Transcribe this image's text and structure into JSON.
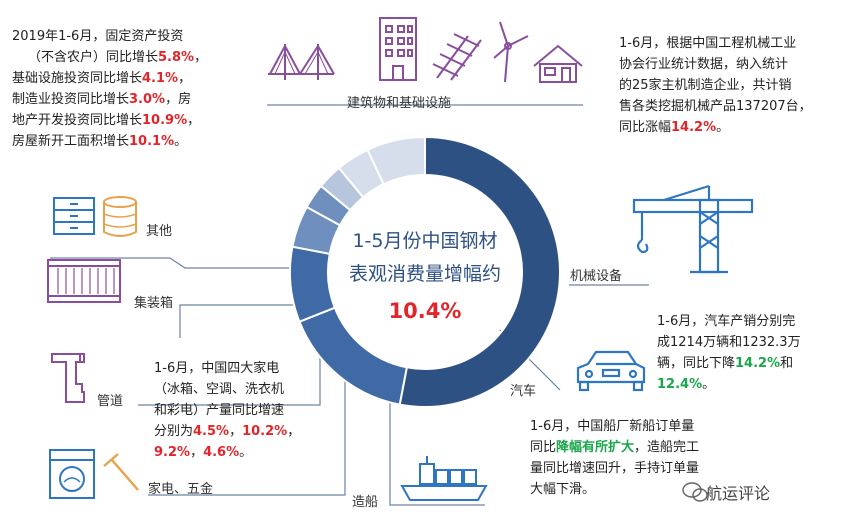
{
  "center": {
    "line1": "1-5月份中国钢材",
    "line2": "表观消费量增幅约",
    "value": "10.4%"
  },
  "colors": {
    "dark_blue": "#2e5184",
    "mid_blue": "#3f6aa6",
    "light_blue": "#6f8fbf",
    "pale_blue": "#b8c6dd",
    "palest_blue": "#d6deeb",
    "icon_purple": "#8a4f9c",
    "icon_blue": "#2f76c2",
    "icon_orange": "#e8a24a",
    "red": "#e0262b",
    "green": "#1aa64b"
  },
  "chart_data": {
    "type": "pie",
    "title": "1-5月份中国钢材表观消费量增幅约10.4%",
    "categories": [
      "建筑物和基础设施",
      "机械设备",
      "汽车",
      "造船",
      "家电、五金",
      "管道",
      "集装箱",
      "其他"
    ],
    "values": [
      53,
      16,
      9,
      5,
      3,
      3,
      4,
      7
    ],
    "note": "Segment sizes estimated from ring arc lengths (percent of total); the figure prints no values for them."
  },
  "categories": {
    "buildings": "建筑物和基础设施",
    "machinery": "机械设备",
    "auto": "汽车",
    "ship": "造船",
    "appliance": "家电、五金",
    "pipe": "管道",
    "container": "集装箱",
    "other": "其他"
  },
  "texts": {
    "topleft": {
      "l1": "2019年1-6月，固定资产投资",
      "l2a": "（不含农户）同比增长",
      "l2b": "5.8%",
      "l2c": "，",
      "l3a": "基础设施投资同比增长",
      "l3b": "4.1%",
      "l3c": "，",
      "l4a": "制造业投资同比增长",
      "l4b": "3.0%",
      "l4c": "，房",
      "l5a": "地产开发投资同比增长",
      "l5b": "10.9%",
      "l5c": "，",
      "l6a": "房屋新开工面积增长",
      "l6b": "10.1%",
      "l6c": "。"
    },
    "topright": {
      "l1": "1-6月，根据中国工程机械工业",
      "l2": "协会行业统计数据，纳入统计",
      "l3": "的25家主机制造企业，共计销",
      "l4": "售各类挖掘机械产品137207台，",
      "l5a": "同比涨幅",
      "l5b": "14.2%",
      "l5c": "。"
    },
    "auto": {
      "l1": "1-6月，汽车产销分别完",
      "l2": "成1214万辆和1232.3万",
      "l3a": "辆，同比下降",
      "l3b": "14.2%",
      "l3c": "和",
      "l4a": "12.4%",
      "l4b": "。"
    },
    "ship": {
      "l1": "1-6月，中国船厂新船订单量",
      "l2a": "同比",
      "l2b": "降幅有所扩大",
      "l2c": "，造船完工",
      "l3": "量同比增速回升，手持订单量",
      "l4": "大幅下滑。"
    },
    "appliance": {
      "l1": "1-6月，中国四大家电",
      "l2": "（冰箱、空调、洗衣机",
      "l3": "和彩电）产量同比增速",
      "l4a": "分别为",
      "l4b": "4.5%",
      "l4c": "，",
      "l4d": "10.2%",
      "l4e": "，",
      "l5a": "9.2%",
      "l5b": "，",
      "l5c": "4.6%",
      "l5d": "。"
    }
  },
  "watermark": "航运评论"
}
